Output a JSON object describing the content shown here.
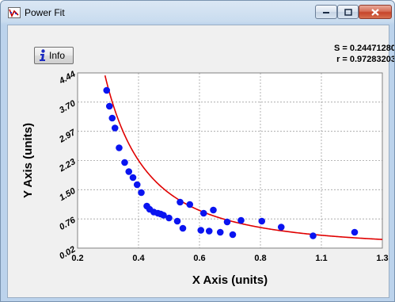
{
  "window": {
    "title": "Power Fit",
    "controls": [
      "minimize",
      "maximize",
      "close"
    ]
  },
  "toolbar": {
    "info_label": "Info",
    "info_icon": "info-icon"
  },
  "stats": {
    "s_line": "S = 0.24471280",
    "r_line": "r = 0.97283203"
  },
  "colors": {
    "points": "#0a14f0",
    "fit_curve": "#e00000",
    "plot_background": "#ffffff",
    "grid": "#a0a0a0"
  },
  "chart_data": {
    "type": "scatter",
    "xlabel": "X Axis (units)",
    "ylabel": "Y Axis (units)",
    "xlim": [
      0.2,
      1.3
    ],
    "ylim": [
      0.02,
      4.44
    ],
    "x_ticks": [
      "0.2",
      "0.4",
      "0.6",
      "0.8",
      "1.1",
      "1.3"
    ],
    "y_ticks": [
      "4.44",
      "3.70",
      "2.97",
      "2.23",
      "1.50",
      "0.76",
      "0.02"
    ],
    "grid": true,
    "series": [
      {
        "points": [
          [
            0.305,
            4.0
          ],
          [
            0.315,
            3.6
          ],
          [
            0.325,
            3.3
          ],
          [
            0.335,
            3.05
          ],
          [
            0.35,
            2.55
          ],
          [
            0.37,
            2.18
          ],
          [
            0.385,
            1.95
          ],
          [
            0.4,
            1.8
          ],
          [
            0.415,
            1.62
          ],
          [
            0.43,
            1.42
          ],
          [
            0.45,
            1.08
          ],
          [
            0.46,
            1.0
          ],
          [
            0.475,
            0.93
          ],
          [
            0.49,
            0.9
          ],
          [
            0.5,
            0.88
          ],
          [
            0.51,
            0.85
          ],
          [
            0.53,
            0.78
          ],
          [
            0.56,
            0.7
          ],
          [
            0.57,
            1.18
          ],
          [
            0.605,
            1.12
          ],
          [
            0.58,
            0.52
          ],
          [
            0.645,
            0.47
          ],
          [
            0.655,
            0.9
          ],
          [
            0.675,
            0.45
          ],
          [
            0.69,
            0.98
          ],
          [
            0.715,
            0.42
          ],
          [
            0.74,
            0.68
          ],
          [
            0.76,
            0.36
          ],
          [
            0.79,
            0.72
          ],
          [
            0.865,
            0.7
          ],
          [
            0.935,
            0.55
          ],
          [
            1.05,
            0.33
          ],
          [
            1.2,
            0.42
          ]
        ]
      }
    ],
    "fit": {
      "model": "power",
      "a": 0.4008,
      "b": -1.98
    }
  }
}
